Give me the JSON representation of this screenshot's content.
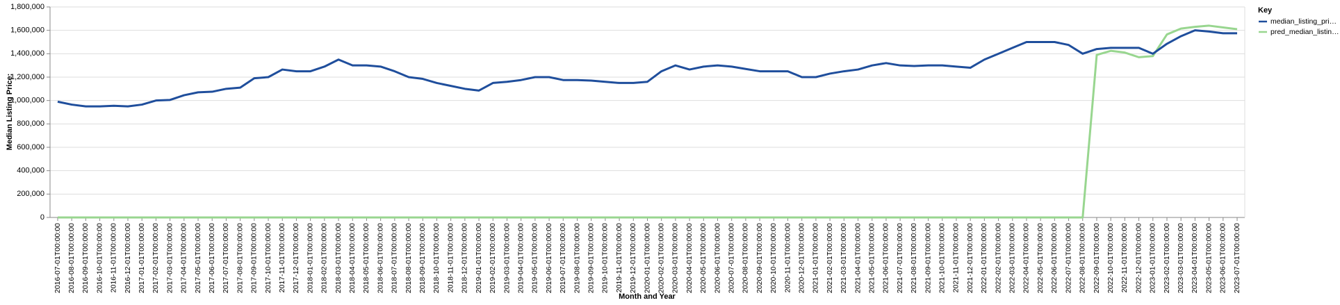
{
  "chart_data": {
    "type": "line",
    "x_label": "Month and Year",
    "y_label": "Median Listing Price:",
    "legend_title": "Key",
    "legend_position": "right",
    "grid": true,
    "categories": [
      "2016-07-01T00:00:00",
      "2016-08-01T00:00:00",
      "2016-09-01T00:00:00",
      "2016-10-01T00:00:00",
      "2016-11-01T00:00:00",
      "2016-12-01T00:00:00",
      "2017-01-01T00:00:00",
      "2017-02-01T00:00:00",
      "2017-03-01T00:00:00",
      "2017-04-01T00:00:00",
      "2017-05-01T00:00:00",
      "2017-06-01T00:00:00",
      "2017-07-01T00:00:00",
      "2017-08-01T00:00:00",
      "2017-09-01T00:00:00",
      "2017-10-01T00:00:00",
      "2017-11-01T00:00:00",
      "2017-12-01T00:00:00",
      "2018-01-01T00:00:00",
      "2018-02-01T00:00:00",
      "2018-03-01T00:00:00",
      "2018-04-01T00:00:00",
      "2018-05-01T00:00:00",
      "2018-06-01T00:00:00",
      "2018-07-01T00:00:00",
      "2018-08-01T00:00:00",
      "2018-09-01T00:00:00",
      "2018-10-01T00:00:00",
      "2018-11-01T00:00:00",
      "2018-12-01T00:00:00",
      "2019-01-01T00:00:00",
      "2019-02-01T00:00:00",
      "2019-03-01T00:00:00",
      "2019-04-01T00:00:00",
      "2019-05-01T00:00:00",
      "2019-06-01T00:00:00",
      "2019-07-01T00:00:00",
      "2019-08-01T00:00:00",
      "2019-09-01T00:00:00",
      "2019-10-01T00:00:00",
      "2019-11-01T00:00:00",
      "2019-12-01T00:00:00",
      "2020-01-01T00:00:00",
      "2020-02-01T00:00:00",
      "2020-03-01T00:00:00",
      "2020-04-01T00:00:00",
      "2020-05-01T00:00:00",
      "2020-06-01T00:00:00",
      "2020-07-01T00:00:00",
      "2020-08-01T00:00:00",
      "2020-09-01T00:00:00",
      "2020-10-01T00:00:00",
      "2020-11-01T00:00:00",
      "2020-12-01T00:00:00",
      "2021-01-01T00:00:00",
      "2021-02-01T00:00:00",
      "2021-03-01T00:00:00",
      "2021-04-01T00:00:00",
      "2021-05-01T00:00:00",
      "2021-06-01T00:00:00",
      "2021-07-01T00:00:00",
      "2021-08-01T00:00:00",
      "2021-09-01T00:00:00",
      "2021-10-01T00:00:00",
      "2021-11-01T00:00:00",
      "2021-12-01T00:00:00",
      "2022-01-01T00:00:00",
      "2022-02-01T00:00:00",
      "2022-03-01T00:00:00",
      "2022-04-01T00:00:00",
      "2022-05-01T00:00:00",
      "2022-06-01T00:00:00",
      "2022-07-01T00:00:00",
      "2022-08-01T00:00:00",
      "2022-09-01T00:00:00",
      "2022-10-01T00:00:00",
      "2022-11-01T00:00:00",
      "2022-12-01T00:00:00",
      "2023-01-01T00:00:00",
      "2023-02-01T00:00:00",
      "2023-03-01T00:00:00",
      "2023-04-01T00:00:00",
      "2023-05-01T00:00:00",
      "2023-06-01T00:00:00",
      "2023-07-01T00:00:00"
    ],
    "series": [
      {
        "name": "median_listing_pri…",
        "color": "#1f4e9c",
        "values": [
          990000,
          965000,
          950000,
          950000,
          955000,
          950000,
          965000,
          1000000,
          1005000,
          1045000,
          1070000,
          1075000,
          1100000,
          1110000,
          1190000,
          1200000,
          1265000,
          1250000,
          1250000,
          1290000,
          1350000,
          1300000,
          1300000,
          1290000,
          1250000,
          1200000,
          1185000,
          1150000,
          1125000,
          1100000,
          1085000,
          1150000,
          1160000,
          1175000,
          1200000,
          1200000,
          1175000,
          1175000,
          1170000,
          1160000,
          1150000,
          1150000,
          1160000,
          1250000,
          1300000,
          1265000,
          1290000,
          1300000,
          1290000,
          1270000,
          1250000,
          1250000,
          1250000,
          1200000,
          1200000,
          1230000,
          1250000,
          1265000,
          1300000,
          1320000,
          1300000,
          1295000,
          1300000,
          1300000,
          1290000,
          1280000,
          1350000,
          1400000,
          1450000,
          1500000,
          1500000,
          1500000,
          1475000,
          1400000,
          1440000,
          1450000,
          1450000,
          1450000,
          1400000,
          1485000,
          1550000,
          1600000,
          1590000,
          1575000,
          1575000
        ]
      },
      {
        "name": "pred_median_listin…",
        "color": "#98d68f",
        "values": [
          0,
          0,
          0,
          0,
          0,
          0,
          0,
          0,
          0,
          0,
          0,
          0,
          0,
          0,
          0,
          0,
          0,
          0,
          0,
          0,
          0,
          0,
          0,
          0,
          0,
          0,
          0,
          0,
          0,
          0,
          0,
          0,
          0,
          0,
          0,
          0,
          0,
          0,
          0,
          0,
          0,
          0,
          0,
          0,
          0,
          0,
          0,
          0,
          0,
          0,
          0,
          0,
          0,
          0,
          0,
          0,
          0,
          0,
          0,
          0,
          0,
          0,
          0,
          0,
          0,
          0,
          0,
          0,
          0,
          0,
          0,
          0,
          0,
          0,
          1390000,
          1425000,
          1410000,
          1370000,
          1380000,
          1565000,
          1615000,
          1630000,
          1640000,
          1625000,
          1610000
        ]
      }
    ],
    "ylim": [
      0,
      1800000
    ],
    "yticks": [
      0,
      {
        "value": 200000,
        "label": "200,000"
      },
      {
        "value": 400000,
        "label": "400,000"
      },
      {
        "value": 600000,
        "label": "600,000"
      },
      {
        "value": 800000,
        "label": "800,000"
      },
      {
        "value": 1000000,
        "label": "1,000,000"
      },
      {
        "value": 1200000,
        "label": "1,200,000"
      },
      {
        "value": 1400000,
        "label": "1,400,000"
      },
      {
        "value": 1600000,
        "label": "1,600,000"
      },
      {
        "value": 1800000,
        "label": "1,800,000"
      }
    ]
  }
}
